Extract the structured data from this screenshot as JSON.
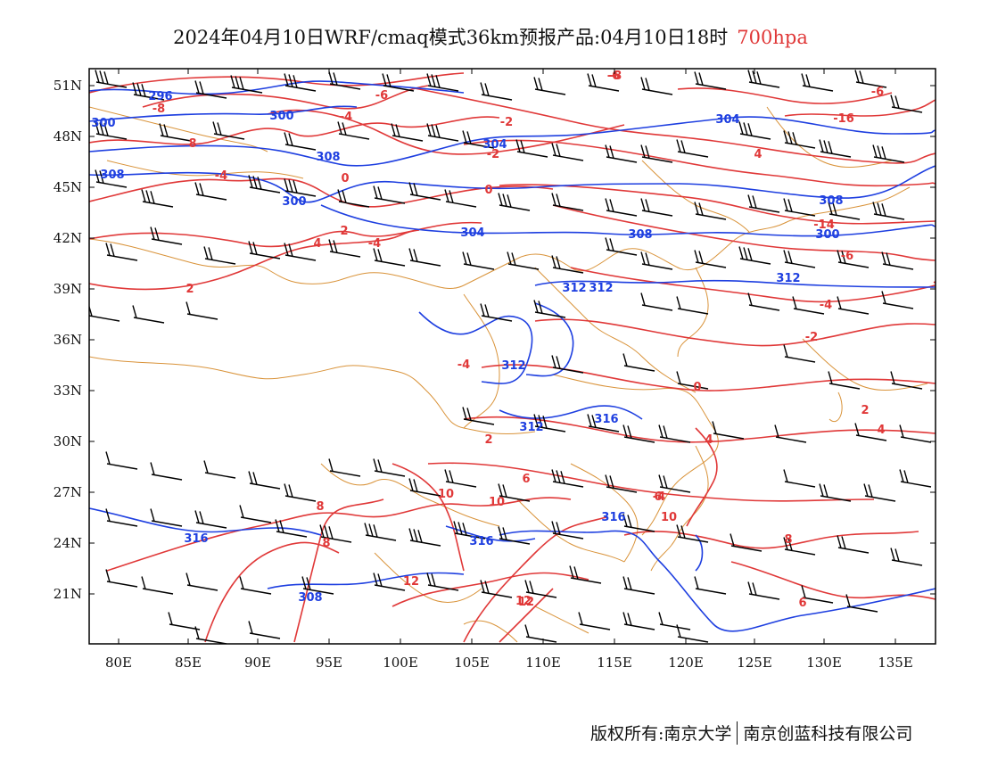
{
  "title": {
    "main": "2024年04月10日WRF/cmaq模式36km预报产品:04月10日18时",
    "level": "700hpa",
    "level_color": "#e03838"
  },
  "colors": {
    "temperature_contour": "#e03838",
    "height_contour": "#1e3fe0",
    "boundary": "#d9933a",
    "wind_barb": "#000000"
  },
  "axes": {
    "lon_labels": [
      "80E",
      "85E",
      "90E",
      "95E",
      "100E",
      "105E",
      "110E",
      "115E",
      "120E",
      "125E",
      "130E",
      "135E"
    ],
    "lat_labels": [
      "51N",
      "48N",
      "45N",
      "42N",
      "39N",
      "36N",
      "33N",
      "30N",
      "27N",
      "24N",
      "21N"
    ]
  },
  "contour_labels": {
    "height": [
      "296",
      "300",
      "300",
      "304",
      "308",
      "308",
      "300",
      "304",
      "308",
      "304",
      "308",
      "300",
      "312",
      "312",
      "312",
      "312",
      "312",
      "316",
      "316",
      "316",
      "316",
      "308"
    ],
    "temperature": [
      "-8",
      "-6",
      "-4",
      "-2",
      "-2",
      "-4",
      "0",
      "0",
      "2",
      "4",
      "-4",
      "2",
      "4",
      "-8",
      "-6",
      "-16",
      "-14",
      "-6",
      "-4",
      "-2",
      "0",
      "2",
      "-4",
      "2",
      "4",
      "4",
      "-4",
      "6",
      "8",
      "8",
      "10",
      "10",
      "12",
      "12",
      "8",
      "10",
      "6",
      "6",
      "8",
      "-6",
      "12"
    ]
  },
  "footer": {
    "left": "版权所有:南京大学",
    "right": "南京创蓝科技有限公司"
  }
}
